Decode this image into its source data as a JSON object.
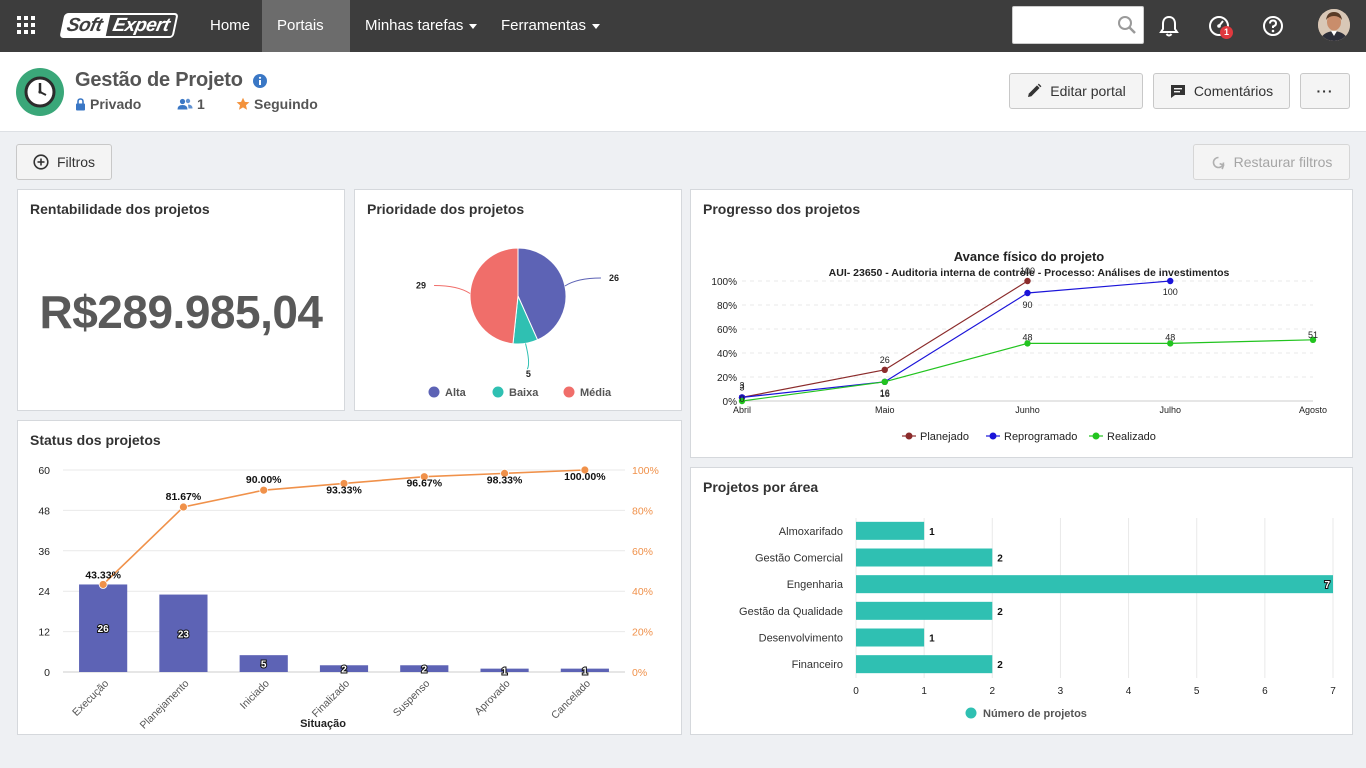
{
  "topbar": {
    "logo_part1": "Soft",
    "logo_part2": "Expert",
    "nav": [
      {
        "label": "Home"
      },
      {
        "label": "Portais"
      },
      {
        "label": "Minhas tarefas"
      },
      {
        "label": "Ferramentas"
      }
    ],
    "search_placeholder": "",
    "notification_badge": "1"
  },
  "header": {
    "title": "Gestão de Projeto",
    "privacy": "Privado",
    "members": "1",
    "following": "Seguindo",
    "edit_label": "Editar portal",
    "comments_label": "Comentários",
    "more_label": "···"
  },
  "filters": {
    "filters_label": "Filtros",
    "restore_label": "Restaurar filtros"
  },
  "colors": {
    "accent": "#3aa779",
    "bar_blue": "#5d63b5",
    "pareto_orange": "#f0914a",
    "teal": "#2fc0b2",
    "red": "#f06e6a",
    "planejado": "#8b2b2b",
    "reprogramado": "#1b14d9",
    "realizado": "#22c41f"
  },
  "rentabilidade": {
    "title": "Rentabilidade dos projetos",
    "value": "R$289.985,04"
  },
  "prioridade": {
    "title": "Prioridade dos projetos",
    "chart_data": {
      "type": "pie",
      "slices": [
        {
          "name": "Alta",
          "value": 26,
          "color": "#5d63b5"
        },
        {
          "name": "Baixa",
          "value": 5,
          "color": "#2fc0b2"
        },
        {
          "name": "Média",
          "value": 29,
          "color": "#f06e6a"
        }
      ]
    }
  },
  "progresso": {
    "title": "Progresso dos projetos",
    "chart_data": {
      "type": "line",
      "title": "Avance físico do projeto",
      "subtitle": "AUI- 23650 - Auditoria interna de controle - Processo: Análises de investimentos",
      "categories": [
        "Abril",
        "Maio",
        "Junho",
        "Julho",
        "Agosto"
      ],
      "yticks": [
        "0%",
        "20%",
        "40%",
        "60%",
        "80%",
        "100%"
      ],
      "ylim": [
        0,
        100
      ],
      "series": [
        {
          "name": "Planejado",
          "color": "#8b2b2b",
          "x": [
            0,
            1,
            2
          ],
          "values": [
            3,
            26,
            100
          ]
        },
        {
          "name": "Reprogramado",
          "color": "#1b14d9",
          "x": [
            0,
            1,
            2,
            3
          ],
          "values": [
            3,
            16,
            90,
            100
          ]
        },
        {
          "name": "Realizado",
          "color": "#22c41f",
          "x": [
            0,
            1,
            2,
            3,
            4
          ],
          "values": [
            0,
            16,
            48,
            48,
            51
          ]
        }
      ]
    }
  },
  "status": {
    "title": "Status dos projetos",
    "chart_data": {
      "type": "bar",
      "categories": [
        "Execução",
        "Planejamento",
        "Iniciado",
        "Finalizado",
        "Suspenso",
        "Aprovado",
        "Cancelado"
      ],
      "values": [
        26,
        23,
        5,
        2,
        2,
        1,
        1
      ],
      "cumulative_pct": [
        43.33,
        81.67,
        90.0,
        93.33,
        96.67,
        98.33,
        100.0
      ],
      "cumulative_labels": [
        "43.33%",
        "81.67%",
        "90.00%",
        "93.33%",
        "96.67%",
        "98.33%",
        "100.00%"
      ],
      "yticks_left": [
        "0",
        "12",
        "24",
        "36",
        "48",
        "60"
      ],
      "yticks_right": [
        "0%",
        "20%",
        "40%",
        "60%",
        "80%",
        "100%"
      ],
      "ylim": [
        0,
        60
      ],
      "xlabel": "Situação"
    }
  },
  "area": {
    "title": "Projetos por área",
    "chart_data": {
      "type": "bar",
      "orientation": "horizontal",
      "categories": [
        "Almoxarifado",
        "Gestão Comercial",
        "Engenharia",
        "Gestão da Qualidade",
        "Desenvolvimento",
        "Financeiro"
      ],
      "values": [
        1,
        2,
        7,
        2,
        1,
        2
      ],
      "xticks": [
        "0",
        "1",
        "2",
        "3",
        "4",
        "5",
        "6",
        "7"
      ],
      "xlim": [
        0,
        7
      ],
      "legend": "Número de projetos"
    }
  }
}
